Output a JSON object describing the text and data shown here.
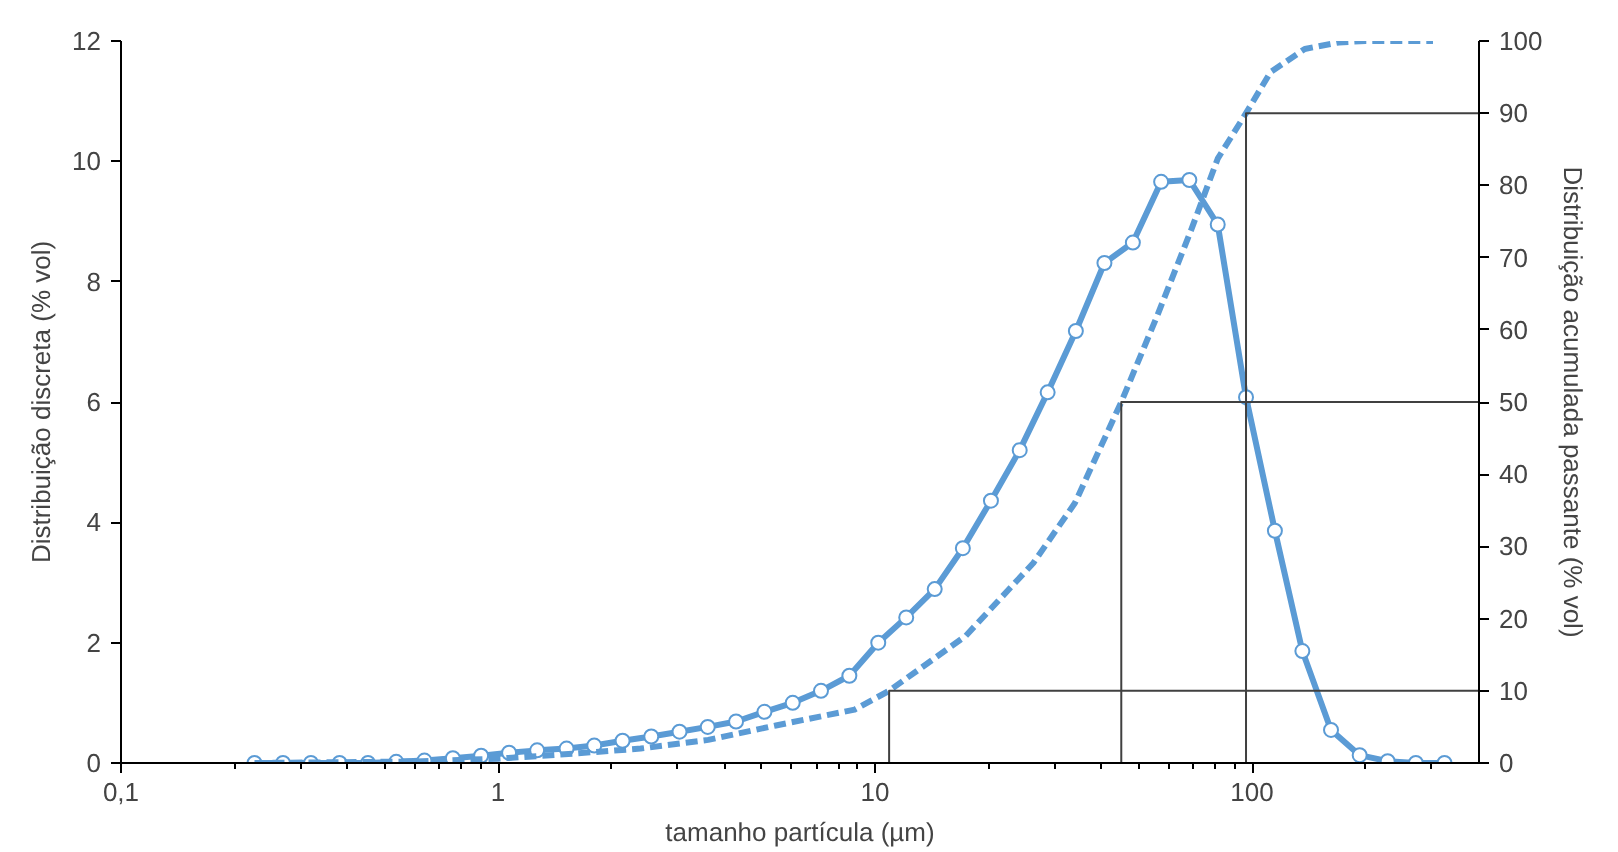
{
  "chart_data": {
    "type": "line",
    "xlabel": "tamanho partícula (µm)",
    "ylabel": "Distribuição discreta (% vol)",
    "y2label": "Distribuição acumulada passante (% vol)",
    "log": "x",
    "grid": false,
    "xlim": [
      0.1,
      400
    ],
    "xticks": [
      {
        "value": 0.1,
        "label": "0,1"
      },
      1,
      10,
      100
    ],
    "ylim": [
      0,
      12
    ],
    "yticks": [
      0,
      2,
      4,
      6,
      8,
      10,
      12
    ],
    "y2lim": [
      0,
      100
    ],
    "y2ticks": [
      0,
      10,
      20,
      30,
      40,
      50,
      60,
      70,
      80,
      90,
      100
    ],
    "series": [
      {
        "color": "#5b9bd5",
        "marker": "circle",
        "line_style": "solid",
        "x": [
          0.226,
          0.269,
          0.319,
          0.38,
          0.452,
          0.537,
          0.638,
          0.759,
          0.902,
          1.07,
          1.27,
          1.52,
          1.8,
          2.14,
          2.55,
          3.03,
          3.6,
          4.28,
          5.09,
          6.05,
          7.19,
          8.55,
          10.2,
          12.1,
          14.4,
          17.1,
          20.3,
          24.2,
          28.7,
          34.1,
          40.6,
          48.3,
          57.4,
          68.2,
          81.1,
          96.4,
          115,
          136,
          162,
          193,
          229,
          272,
          324
        ],
        "values": [
          0,
          0,
          0,
          0,
          0,
          0.02,
          0.04,
          0.08,
          0.12,
          0.17,
          0.21,
          0.24,
          0.29,
          0.37,
          0.44,
          0.52,
          0.6,
          0.69,
          0.85,
          1.0,
          1.2,
          1.45,
          2.0,
          2.42,
          2.89,
          3.57,
          4.36,
          5.2,
          6.16,
          7.18,
          8.31,
          8.65,
          9.66,
          9.69,
          8.95,
          6.08,
          3.86,
          1.86,
          0.55,
          0.13,
          0.03,
          0,
          0
        ]
      },
      {
        "color": "#5b9bd5",
        "marker": "none",
        "line_style": "dashed",
        "axis": "y2",
        "x": [
          0.226,
          0.6,
          1.0,
          1.5,
          2.39,
          3.61,
          5.46,
          8.83,
          10.9,
          17.4,
          26.3,
          33.9,
          45,
          55.8,
          68.7,
          81.1,
          96.4,
          112,
          138,
          170,
          200,
          302
        ],
        "values": [
          0,
          0.2,
          0.6,
          1.2,
          2.0,
          3.2,
          5.2,
          7.4,
          10,
          17.6,
          27.7,
          36,
          50,
          61.7,
          73.6,
          83.7,
          90,
          95.7,
          98.9,
          99.8,
          100,
          100
        ]
      },
      {
        "color": "#404040",
        "marker": "none",
        "line_style": "solid",
        "axis": "y2",
        "x": [
          10.9,
          10.9,
          400
        ],
        "values": [
          0,
          10,
          10
        ]
      },
      {
        "color": "#404040",
        "marker": "none",
        "line_style": "solid",
        "axis": "y2",
        "x": [
          45,
          45,
          400
        ],
        "values": [
          0,
          50,
          50
        ]
      },
      {
        "color": "#404040",
        "marker": "none",
        "line_style": "solid",
        "axis": "y2",
        "x": [
          96.4,
          96.4,
          400
        ],
        "values": [
          0,
          90,
          90
        ]
      }
    ]
  }
}
